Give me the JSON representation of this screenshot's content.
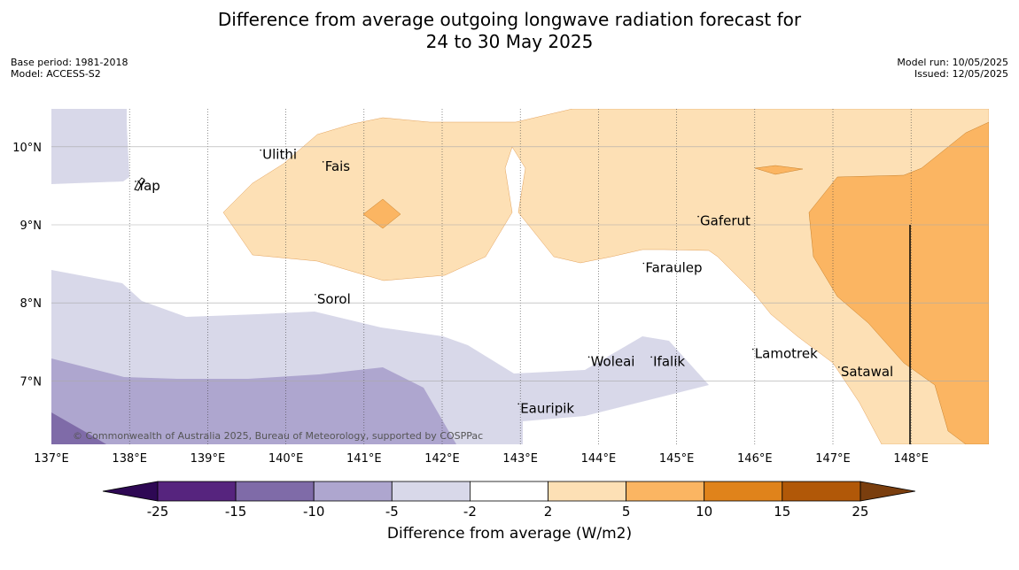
{
  "title": {
    "line1": "Difference from average outgoing longwave radiation forecast for",
    "line2": "24 to 30 May 2025"
  },
  "meta_left": {
    "base_period": "Base period: 1981-2018",
    "model": "Model: ACCESS-S2"
  },
  "meta_right": {
    "model_run": "Model run: 10/05/2025",
    "issued": "Issued: 12/05/2025"
  },
  "map": {
    "lon_range": [
      137,
      149
    ],
    "lat_range": [
      6.2,
      10.5
    ],
    "lon_ticks": [
      "137°E",
      "138°E",
      "139°E",
      "140°E",
      "141°E",
      "142°E",
      "143°E",
      "144°E",
      "145°E",
      "146°E",
      "147°E",
      "148°E"
    ],
    "lat_ticks": [
      "10°N",
      "9°N",
      "8°N",
      "7°N"
    ],
    "places": [
      {
        "name": "Ulithi",
        "lon": 139.7,
        "lat": 9.9
      },
      {
        "name": "Fais",
        "lon": 140.5,
        "lat": 9.75
      },
      {
        "name": "Yap",
        "lon": 138.1,
        "lat": 9.5
      },
      {
        "name": "Gaferut",
        "lon": 145.3,
        "lat": 9.05
      },
      {
        "name": "Faraulep",
        "lon": 144.6,
        "lat": 8.45
      },
      {
        "name": "Sorol",
        "lon": 140.4,
        "lat": 8.05
      },
      {
        "name": "Lamotrek",
        "lon": 146.0,
        "lat": 7.35
      },
      {
        "name": "Woleai",
        "lon": 143.9,
        "lat": 7.25
      },
      {
        "name": "Ifalik",
        "lon": 144.7,
        "lat": 7.25
      },
      {
        "name": "Satawal",
        "lon": 147.1,
        "lat": 7.12
      },
      {
        "name": "Eauripik",
        "lon": 143.0,
        "lat": 6.65
      }
    ],
    "copyright": "© Commonwealth of Australia 2025, Bureau of Meteorology, supported by COSPPac"
  },
  "colorbar": {
    "ticks": [
      "-25",
      "-15",
      "-10",
      "-5",
      "-2",
      "2",
      "5",
      "10",
      "15",
      "25"
    ],
    "colors": [
      "#56247e",
      "#7f6ba8",
      "#aea6cf",
      "#d8d8e9",
      "#ffffff",
      "#fde0b5",
      "#fbb562",
      "#e0831b",
      "#b15808"
    ],
    "under_color": "#2e0854",
    "over_color": "#7a3e0e",
    "label": "Difference from average (W/m2)"
  }
}
